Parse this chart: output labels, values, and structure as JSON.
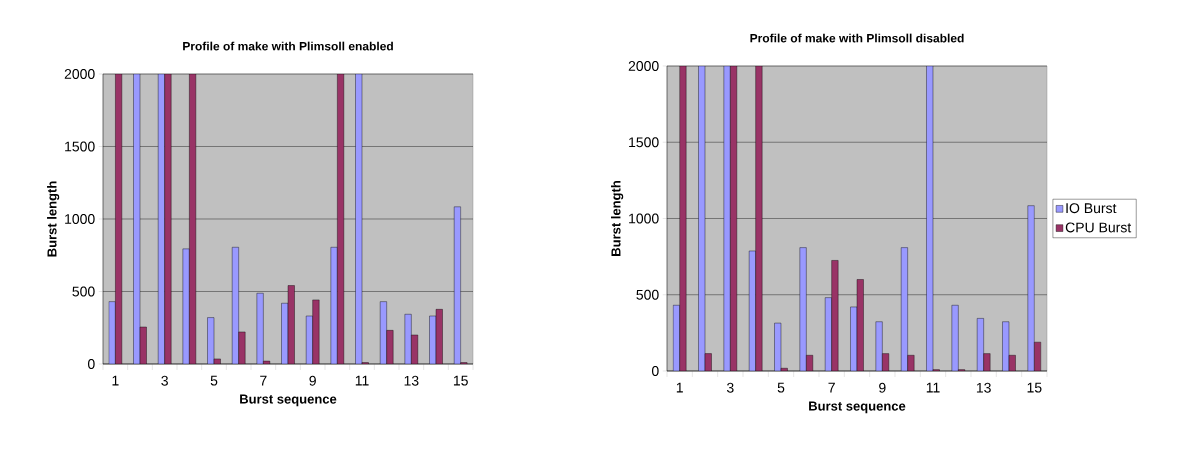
{
  "chart_data": [
    {
      "type": "bar",
      "title": "Profile of make with Plimsoll enabled",
      "xlabel": "Burst sequence",
      "ylabel": "Burst length",
      "categories": [
        "1",
        null,
        "3",
        null,
        "5",
        null,
        "7",
        null,
        "9",
        null,
        "11",
        null,
        "13",
        null,
        "15"
      ],
      "series": [
        {
          "color": "#9999ff",
          "values": [
            430,
            2000,
            2000,
            794,
            320,
            805,
            488,
            419,
            331,
            805,
            2000,
            430,
            343,
            331,
            1084
          ]
        },
        {
          "color": "#993366",
          "values": [
            2000,
            255,
            2000,
            2000,
            35,
            221,
            20,
            541,
            442,
            2000,
            10,
            232,
            200,
            377,
            10
          ]
        }
      ],
      "ylim": [
        0,
        2000
      ],
      "yticks": [
        0,
        500,
        1000,
        1500,
        2000
      ],
      "grid": "y"
    },
    {
      "type": "bar",
      "title": "Profile of make with Plimsoll disabled",
      "xlabel": "Burst sequence",
      "ylabel": "Burst length",
      "categories": [
        "1",
        null,
        "3",
        null,
        "5",
        null,
        "7",
        null,
        "9",
        null,
        "11",
        null,
        "13",
        null,
        "15"
      ],
      "series": [
        {
          "name": "IO Burst",
          "color": "#9999ff",
          "values": [
            431,
            2000,
            2000,
            787,
            314,
            809,
            481,
            420,
            323,
            809,
            2000,
            431,
            345,
            323,
            1084
          ]
        },
        {
          "name": "CPU Burst",
          "color": "#993366",
          "values": [
            2000,
            114,
            2000,
            2000,
            18,
            103,
            725,
            600,
            114,
            103,
            9,
            9,
            114,
            103,
            189
          ]
        }
      ],
      "ylim": [
        0,
        2000
      ],
      "yticks": [
        0,
        500,
        1000,
        1500,
        2000
      ],
      "grid": "y",
      "legend": "right"
    }
  ]
}
